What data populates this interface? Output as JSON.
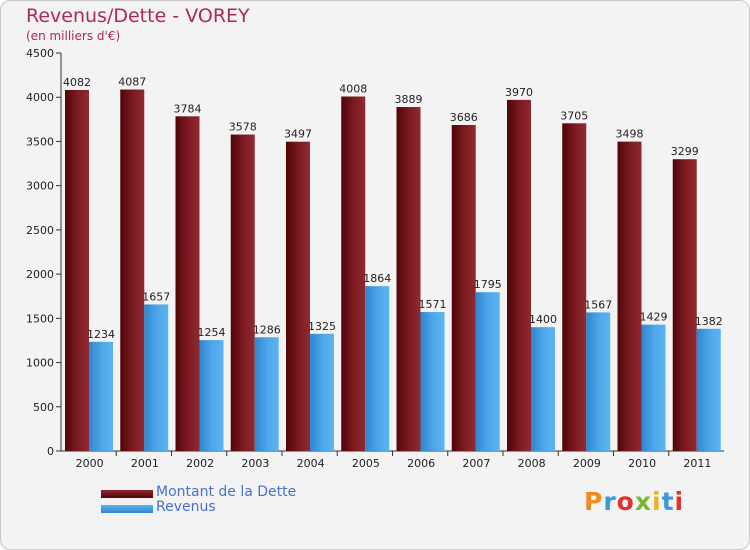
{
  "chart_data": {
    "type": "bar",
    "title": "Revenus/Dette - VOREY",
    "subtitle": "(en milliers d'€)",
    "categories": [
      "2000",
      "2001",
      "2002",
      "2003",
      "2004",
      "2005",
      "2006",
      "2007",
      "2008",
      "2009",
      "2010",
      "2011"
    ],
    "series": [
      {
        "name": "Montant de la Dette",
        "color": "#7a1a1f",
        "values": [
          4082,
          4087,
          3784,
          3578,
          3497,
          4008,
          3889,
          3686,
          3970,
          3705,
          3498,
          3299
        ]
      },
      {
        "name": "Revenus",
        "color": "#4aa3e6",
        "values": [
          1234,
          1657,
          1254,
          1286,
          1325,
          1864,
          1571,
          1795,
          1400,
          1567,
          1429,
          1382
        ]
      }
    ],
    "ylim": [
      0,
      4500
    ],
    "yticks": [
      0,
      500,
      1000,
      1500,
      2000,
      2500,
      3000,
      3500,
      4000,
      4500
    ],
    "grid": false,
    "legend_position": "bottom-left"
  },
  "logo": {
    "text": "Proxiti",
    "letters": [
      {
        "ch": "P",
        "color": "#f28a1e"
      },
      {
        "ch": "r",
        "color": "#3a9ad9"
      },
      {
        "ch": "o",
        "color": "#e0332b"
      },
      {
        "ch": "x",
        "color": "#7ab834"
      },
      {
        "ch": "i",
        "color": "#f2b21e"
      },
      {
        "ch": "t",
        "color": "#3a9ad9"
      },
      {
        "ch": "i",
        "color": "#e0332b"
      }
    ]
  }
}
